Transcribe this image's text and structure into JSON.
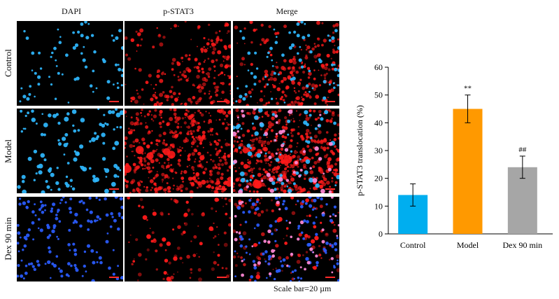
{
  "figure": {
    "columns": [
      "DAPI",
      "p-STAT3",
      "Merge"
    ],
    "rows": [
      "Control",
      "Model",
      "Dex 90 min"
    ],
    "scale_note": "Scale bar=20 µm",
    "colors": {
      "dapi": "#2fb8ff",
      "dapi_dim": "#2a5cff",
      "pstat3": "#ff1a1a",
      "merge_overlap": "#ff8ad8",
      "scale_marker": "#ff2a2a"
    }
  },
  "chart_data": {
    "type": "bar",
    "categories": [
      "Control",
      "Model",
      "Dex 90 min"
    ],
    "values": [
      14,
      45,
      24
    ],
    "errors": [
      4,
      5,
      4
    ],
    "annotations": [
      "",
      "**",
      "##"
    ],
    "colors": [
      "#00aeef",
      "#ff9900",
      "#a6a6a6"
    ],
    "xlabel": "",
    "ylabel": "p-STAT3 translocation (%)",
    "ylim": [
      0,
      60
    ],
    "yticks": [
      0,
      10,
      20,
      30,
      40,
      50,
      60
    ],
    "grid": false,
    "legend": "none"
  }
}
